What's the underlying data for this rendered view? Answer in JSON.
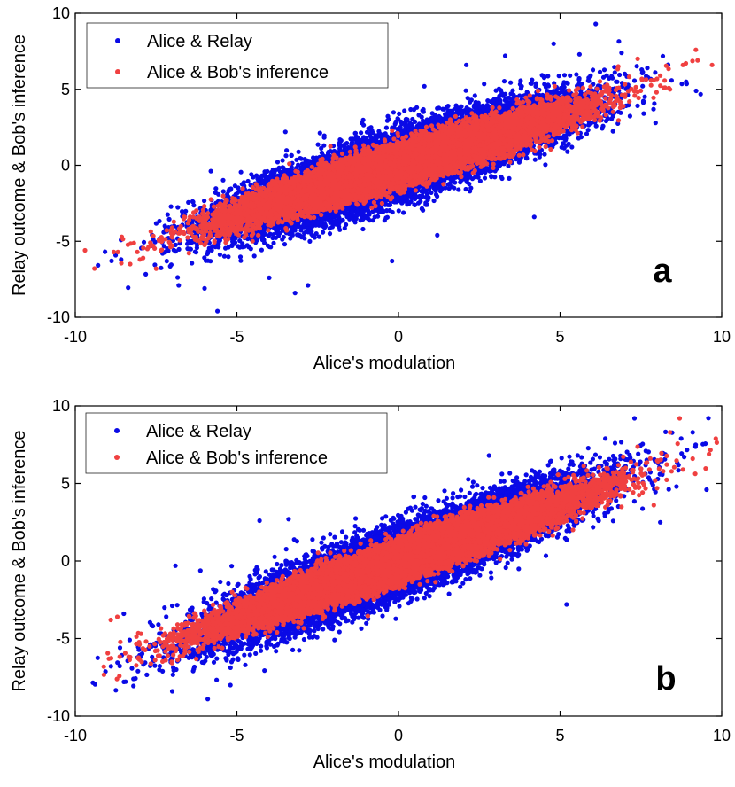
{
  "chart_data": [
    {
      "type": "scatter",
      "panel_label": "a",
      "xlabel": "Alice's modulation",
      "ylabel": "Relay outcome & Bob's inference",
      "xlim": [
        -10,
        10
      ],
      "ylim": [
        -10,
        10
      ],
      "xticks": [
        "-10",
        "-5",
        "0",
        "5",
        "10"
      ],
      "yticks": [
        "-10",
        "-5",
        "0",
        "5",
        "10"
      ],
      "grid": false,
      "legend_position": "top-left",
      "series": [
        {
          "name": "Alice & Relay",
          "color": "#0a0ae6",
          "n_points": 20000,
          "dist": {
            "x_mean": 0,
            "x_sd": 2.4,
            "slope": 0.68,
            "resid_sd": 1.0
          },
          "outliers": [
            [
              -5.6,
              -9.6
            ],
            [
              -3.2,
              -8.4
            ],
            [
              6.1,
              9.3
            ],
            [
              8.9,
              5.5
            ],
            [
              7.7,
              6.4
            ],
            [
              -4.0,
              -7.4
            ],
            [
              -2.8,
              -7.9
            ],
            [
              4.8,
              8.0
            ],
            [
              3.3,
              7.2
            ],
            [
              -6.8,
              -7.9
            ],
            [
              -0.2,
              -6.3
            ],
            [
              1.2,
              -4.6
            ],
            [
              5.6,
              7.3
            ],
            [
              -7.3,
              -5.8
            ],
            [
              2.1,
              6.6
            ],
            [
              6.9,
              7.4
            ],
            [
              -6.0,
              -8.1
            ],
            [
              4.2,
              -3.4
            ],
            [
              -3.5,
              2.2
            ],
            [
              0.8,
              5.2
            ]
          ]
        },
        {
          "name": "Alice & Bob's inference",
          "color": "#f04040",
          "n_points": 20000,
          "dist": {
            "x_mean": 0,
            "x_sd": 2.4,
            "slope": 0.66,
            "resid_sd": 0.6
          },
          "outliers": [
            [
              -9.7,
              -5.6
            ],
            [
              9.2,
              7.6
            ],
            [
              -8.3,
              -6.5
            ],
            [
              -7.9,
              -6.1
            ],
            [
              8.8,
              6.6
            ],
            [
              7.4,
              7.0
            ],
            [
              -7.0,
              -5.3
            ],
            [
              8.1,
              5.9
            ],
            [
              -6.5,
              -4.2
            ],
            [
              6.8,
              6.5
            ],
            [
              -7.5,
              -6.8
            ],
            [
              8.4,
              5.0
            ],
            [
              -8.0,
              -6.2
            ],
            [
              7.9,
              5.6
            ]
          ]
        }
      ]
    },
    {
      "type": "scatter",
      "panel_label": "b",
      "xlabel": "Alice's modulation",
      "ylabel": "Relay outcome & Bob's inference",
      "xlim": [
        -10,
        10
      ],
      "ylim": [
        -10,
        10
      ],
      "xticks": [
        "-10",
        "-5",
        "0",
        "5",
        "10"
      ],
      "yticks": [
        "-10",
        "-5",
        "0",
        "5",
        "10"
      ],
      "grid": false,
      "legend_position": "top-left",
      "series": [
        {
          "name": "Alice & Relay",
          "color": "#0a0ae6",
          "n_points": 20000,
          "dist": {
            "x_mean": 0,
            "x_sd": 2.6,
            "slope": 0.78,
            "resid_sd": 1.0
          },
          "outliers": [
            [
              -5.9,
              -8.9
            ],
            [
              -7.0,
              -8.4
            ],
            [
              -8.5,
              -3.4
            ],
            [
              -8.2,
              -7.6
            ],
            [
              9.1,
              8.3
            ],
            [
              7.3,
              9.2
            ],
            [
              6.4,
              7.9
            ],
            [
              8.6,
              4.8
            ],
            [
              8.1,
              2.5
            ],
            [
              -4.3,
              2.6
            ],
            [
              -3.4,
              2.7
            ],
            [
              -6.9,
              -0.3
            ],
            [
              5.2,
              -2.8
            ],
            [
              2.8,
              6.8
            ],
            [
              -5.2,
              -8.0
            ],
            [
              6.7,
              7.6
            ],
            [
              -7.6,
              -4.2
            ]
          ]
        },
        {
          "name": "Alice & Bob's inference",
          "color": "#f04040",
          "n_points": 20000,
          "dist": {
            "x_mean": 0,
            "x_sd": 2.6,
            "slope": 0.74,
            "resid_sd": 0.6
          },
          "outliers": [
            [
              -8.9,
              -3.8
            ],
            [
              -8.7,
              -3.6
            ],
            [
              8.7,
              9.2
            ],
            [
              8.8,
              5.9
            ],
            [
              9.1,
              6.6
            ],
            [
              8.0,
              4.7
            ],
            [
              -8.3,
              -6.2
            ],
            [
              -7.7,
              -5.5
            ],
            [
              7.9,
              3.6
            ],
            [
              -7.2,
              -6.4
            ],
            [
              7.6,
              4.9
            ],
            [
              8.4,
              8.3
            ]
          ]
        }
      ]
    }
  ]
}
